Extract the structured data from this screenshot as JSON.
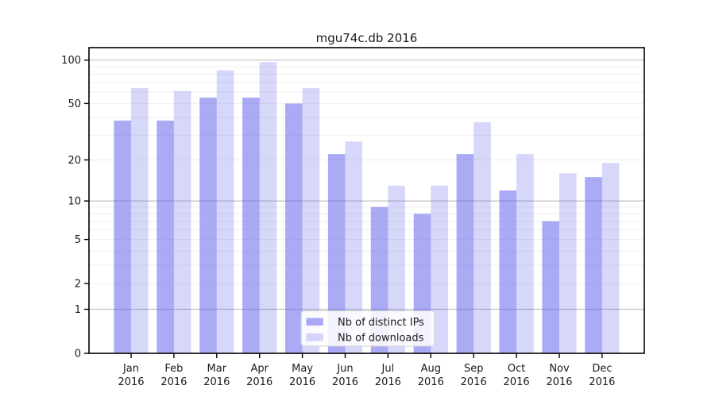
{
  "chart_data": {
    "type": "bar",
    "title": "mgu74c.db 2016",
    "x_tick_label_year": "2016",
    "categories": [
      "Jan",
      "Feb",
      "Mar",
      "Apr",
      "May",
      "Jun",
      "Jul",
      "Aug",
      "Sep",
      "Oct",
      "Nov",
      "Dec"
    ],
    "series": [
      {
        "name": "Nb of distinct IPs",
        "values": [
          38,
          38,
          55,
          55,
          50,
          22,
          9,
          8,
          22,
          12,
          7,
          15
        ],
        "rendered_color_hex": "#abaaf4",
        "fill": "rgba(88,88,235,0.5)"
      },
      {
        "name": "Nb of downloads",
        "values": [
          64,
          61,
          85,
          97,
          64,
          27,
          13,
          13,
          37,
          22,
          16,
          19
        ],
        "rendered_color_hex": "#d9d9f9",
        "fill": "rgba(88,88,235,0.24)"
      }
    ],
    "y_axis": {
      "scale": "symlog",
      "ticks": [
        0,
        1,
        2,
        5,
        10,
        20,
        50,
        100
      ],
      "range": [
        0,
        123
      ]
    },
    "grid": {
      "major_values": [
        1,
        10,
        100
      ],
      "minor_values": [
        2,
        3,
        4,
        5,
        6,
        7,
        8,
        9,
        20,
        30,
        40,
        50,
        60,
        70,
        80,
        90
      ],
      "major_color": "#c2c2c2",
      "minor_color": "#efefef"
    },
    "legend": {
      "position": "bottom-center",
      "entries": [
        "Nb of distinct IPs",
        "Nb of downloads"
      ],
      "background": "rgba(255,255,255,0.85)",
      "border_color": "#cccccc"
    },
    "axis_color": "#000000"
  }
}
